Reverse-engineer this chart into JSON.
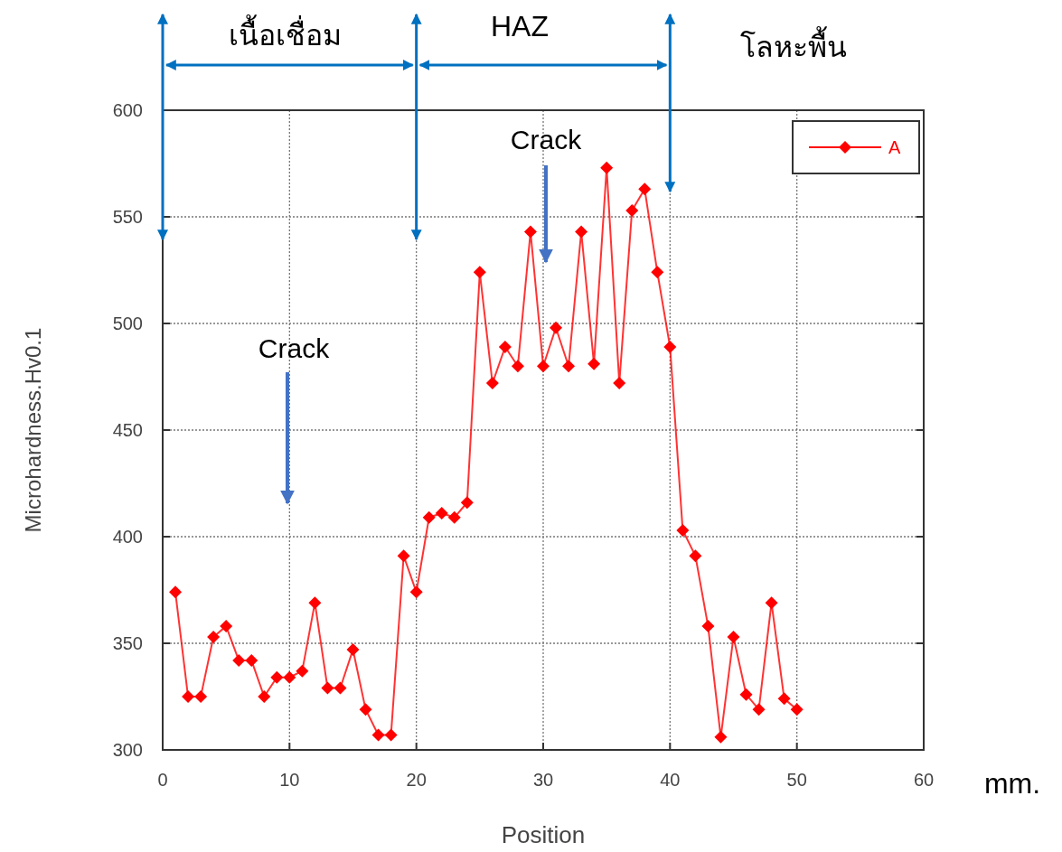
{
  "chart_data": {
    "type": "line",
    "xlabel": "Position",
    "ylabel": "Microhardness.Hv0.1",
    "x": [
      1,
      2,
      3,
      4,
      5,
      6,
      7,
      8,
      9,
      10,
      11,
      12,
      13,
      14,
      15,
      16,
      17,
      18,
      19,
      20,
      21,
      22,
      23,
      24,
      25,
      26,
      27,
      28,
      29,
      30,
      31,
      32,
      33,
      34,
      35,
      36,
      37,
      38,
      39,
      40,
      41,
      42,
      43,
      44,
      45,
      46,
      47,
      48,
      49,
      50
    ],
    "series": [
      {
        "name": "A",
        "color": "#ff0000",
        "values": [
          374,
          325,
          325,
          353,
          358,
          342,
          342,
          325,
          334,
          334,
          337,
          369,
          329,
          329,
          347,
          319,
          307,
          307,
          391,
          374,
          409,
          411,
          409,
          416,
          524,
          472,
          489,
          480,
          543,
          480,
          498,
          480,
          543,
          481,
          573,
          472,
          553,
          563,
          524,
          489,
          403,
          391,
          358,
          306,
          353,
          326,
          319,
          369,
          324,
          319
        ]
      }
    ],
    "xlim": [
      0,
      60
    ],
    "xticks": [
      0,
      10,
      20,
      30,
      40,
      50,
      60
    ],
    "ylim": [
      300,
      600
    ],
    "yticks": [
      300,
      350,
      400,
      450,
      500,
      550,
      600
    ],
    "grid": true,
    "legend": "top right",
    "marker": "diamond",
    "line_style": "solid",
    "ref_lines": [
      {
        "axis": "x",
        "value": 0,
        "color": "#0070c0"
      },
      {
        "axis": "x",
        "value": 20,
        "color": "#0070c0"
      },
      {
        "axis": "x",
        "value": 40,
        "color": "#0070c0"
      }
    ],
    "annotations": [
      "เนื้อเชื่อม",
      "HAZ",
      "โลหะพื้น",
      "mm.",
      "Crack",
      "Crack"
    ]
  }
}
